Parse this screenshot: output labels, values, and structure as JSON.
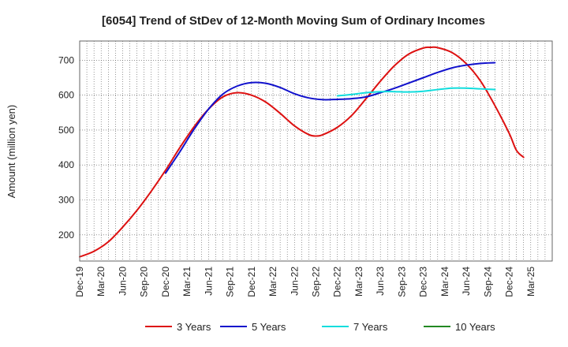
{
  "chart_data": {
    "type": "line",
    "title": "[6054]  Trend of StDev of 12-Month Moving Sum of Ordinary Incomes",
    "xlabel": "",
    "ylabel": "Amount (million yen)",
    "ylim": [
      125,
      755
    ],
    "yticks": [
      200,
      300,
      400,
      500,
      600,
      700
    ],
    "x_range": [
      0,
      66
    ],
    "x_ticks": [
      {
        "pos": 0,
        "label": "Dec-19"
      },
      {
        "pos": 3,
        "label": "Mar-20"
      },
      {
        "pos": 6,
        "label": "Jun-20"
      },
      {
        "pos": 9,
        "label": "Sep-20"
      },
      {
        "pos": 12,
        "label": "Dec-20"
      },
      {
        "pos": 15,
        "label": "Mar-21"
      },
      {
        "pos": 18,
        "label": "Jun-21"
      },
      {
        "pos": 21,
        "label": "Sep-21"
      },
      {
        "pos": 24,
        "label": "Dec-21"
      },
      {
        "pos": 27,
        "label": "Mar-22"
      },
      {
        "pos": 30,
        "label": "Jun-22"
      },
      {
        "pos": 33,
        "label": "Sep-22"
      },
      {
        "pos": 36,
        "label": "Dec-22"
      },
      {
        "pos": 39,
        "label": "Mar-23"
      },
      {
        "pos": 42,
        "label": "Jun-23"
      },
      {
        "pos": 45,
        "label": "Sep-23"
      },
      {
        "pos": 48,
        "label": "Dec-23"
      },
      {
        "pos": 51,
        "label": "Mar-24"
      },
      {
        "pos": 54,
        "label": "Jun-24"
      },
      {
        "pos": 57,
        "label": "Sep-24"
      },
      {
        "pos": 60,
        "label": "Dec-24"
      },
      {
        "pos": 63,
        "label": "Mar-25"
      }
    ],
    "grid": true,
    "legend_position": "bottom",
    "series": [
      {
        "name": "3 Years",
        "color": "#dd1111",
        "points": [
          [
            0,
            137
          ],
          [
            2,
            153
          ],
          [
            4,
            180
          ],
          [
            6,
            222
          ],
          [
            8,
            270
          ],
          [
            10,
            325
          ],
          [
            12,
            385
          ],
          [
            14,
            450
          ],
          [
            16,
            510
          ],
          [
            18,
            560
          ],
          [
            20,
            595
          ],
          [
            22,
            607
          ],
          [
            24,
            600
          ],
          [
            26,
            580
          ],
          [
            28,
            548
          ],
          [
            30,
            512
          ],
          [
            32,
            487
          ],
          [
            33,
            483
          ],
          [
            34,
            487
          ],
          [
            36,
            508
          ],
          [
            38,
            542
          ],
          [
            40,
            590
          ],
          [
            42,
            640
          ],
          [
            44,
            685
          ],
          [
            46,
            718
          ],
          [
            48,
            735
          ],
          [
            49,
            737
          ],
          [
            50,
            736
          ],
          [
            52,
            722
          ],
          [
            54,
            690
          ],
          [
            56,
            640
          ],
          [
            58,
            570
          ],
          [
            60,
            490
          ],
          [
            61,
            442
          ],
          [
            62,
            422
          ]
        ]
      },
      {
        "name": "5 Years",
        "color": "#1111cc",
        "points": [
          [
            12,
            377
          ],
          [
            14,
            438
          ],
          [
            16,
            503
          ],
          [
            18,
            560
          ],
          [
            20,
            603
          ],
          [
            22,
            626
          ],
          [
            24,
            636
          ],
          [
            26,
            634
          ],
          [
            28,
            622
          ],
          [
            30,
            604
          ],
          [
            32,
            592
          ],
          [
            34,
            587
          ],
          [
            36,
            588
          ],
          [
            38,
            590
          ],
          [
            40,
            595
          ],
          [
            42,
            607
          ],
          [
            44,
            620
          ],
          [
            46,
            635
          ],
          [
            48,
            650
          ],
          [
            50,
            665
          ],
          [
            52,
            678
          ],
          [
            54,
            686
          ],
          [
            56,
            691
          ],
          [
            58,
            693
          ]
        ]
      },
      {
        "name": "7 Years",
        "color": "#11dddd",
        "points": [
          [
            36,
            598
          ],
          [
            38,
            602
          ],
          [
            40,
            607
          ],
          [
            42,
            610
          ],
          [
            44,
            610
          ],
          [
            46,
            609
          ],
          [
            48,
            611
          ],
          [
            50,
            616
          ],
          [
            52,
            620
          ],
          [
            54,
            620
          ],
          [
            56,
            618
          ],
          [
            58,
            616
          ]
        ]
      },
      {
        "name": "10 Years",
        "color": "#228822",
        "points": []
      }
    ]
  }
}
